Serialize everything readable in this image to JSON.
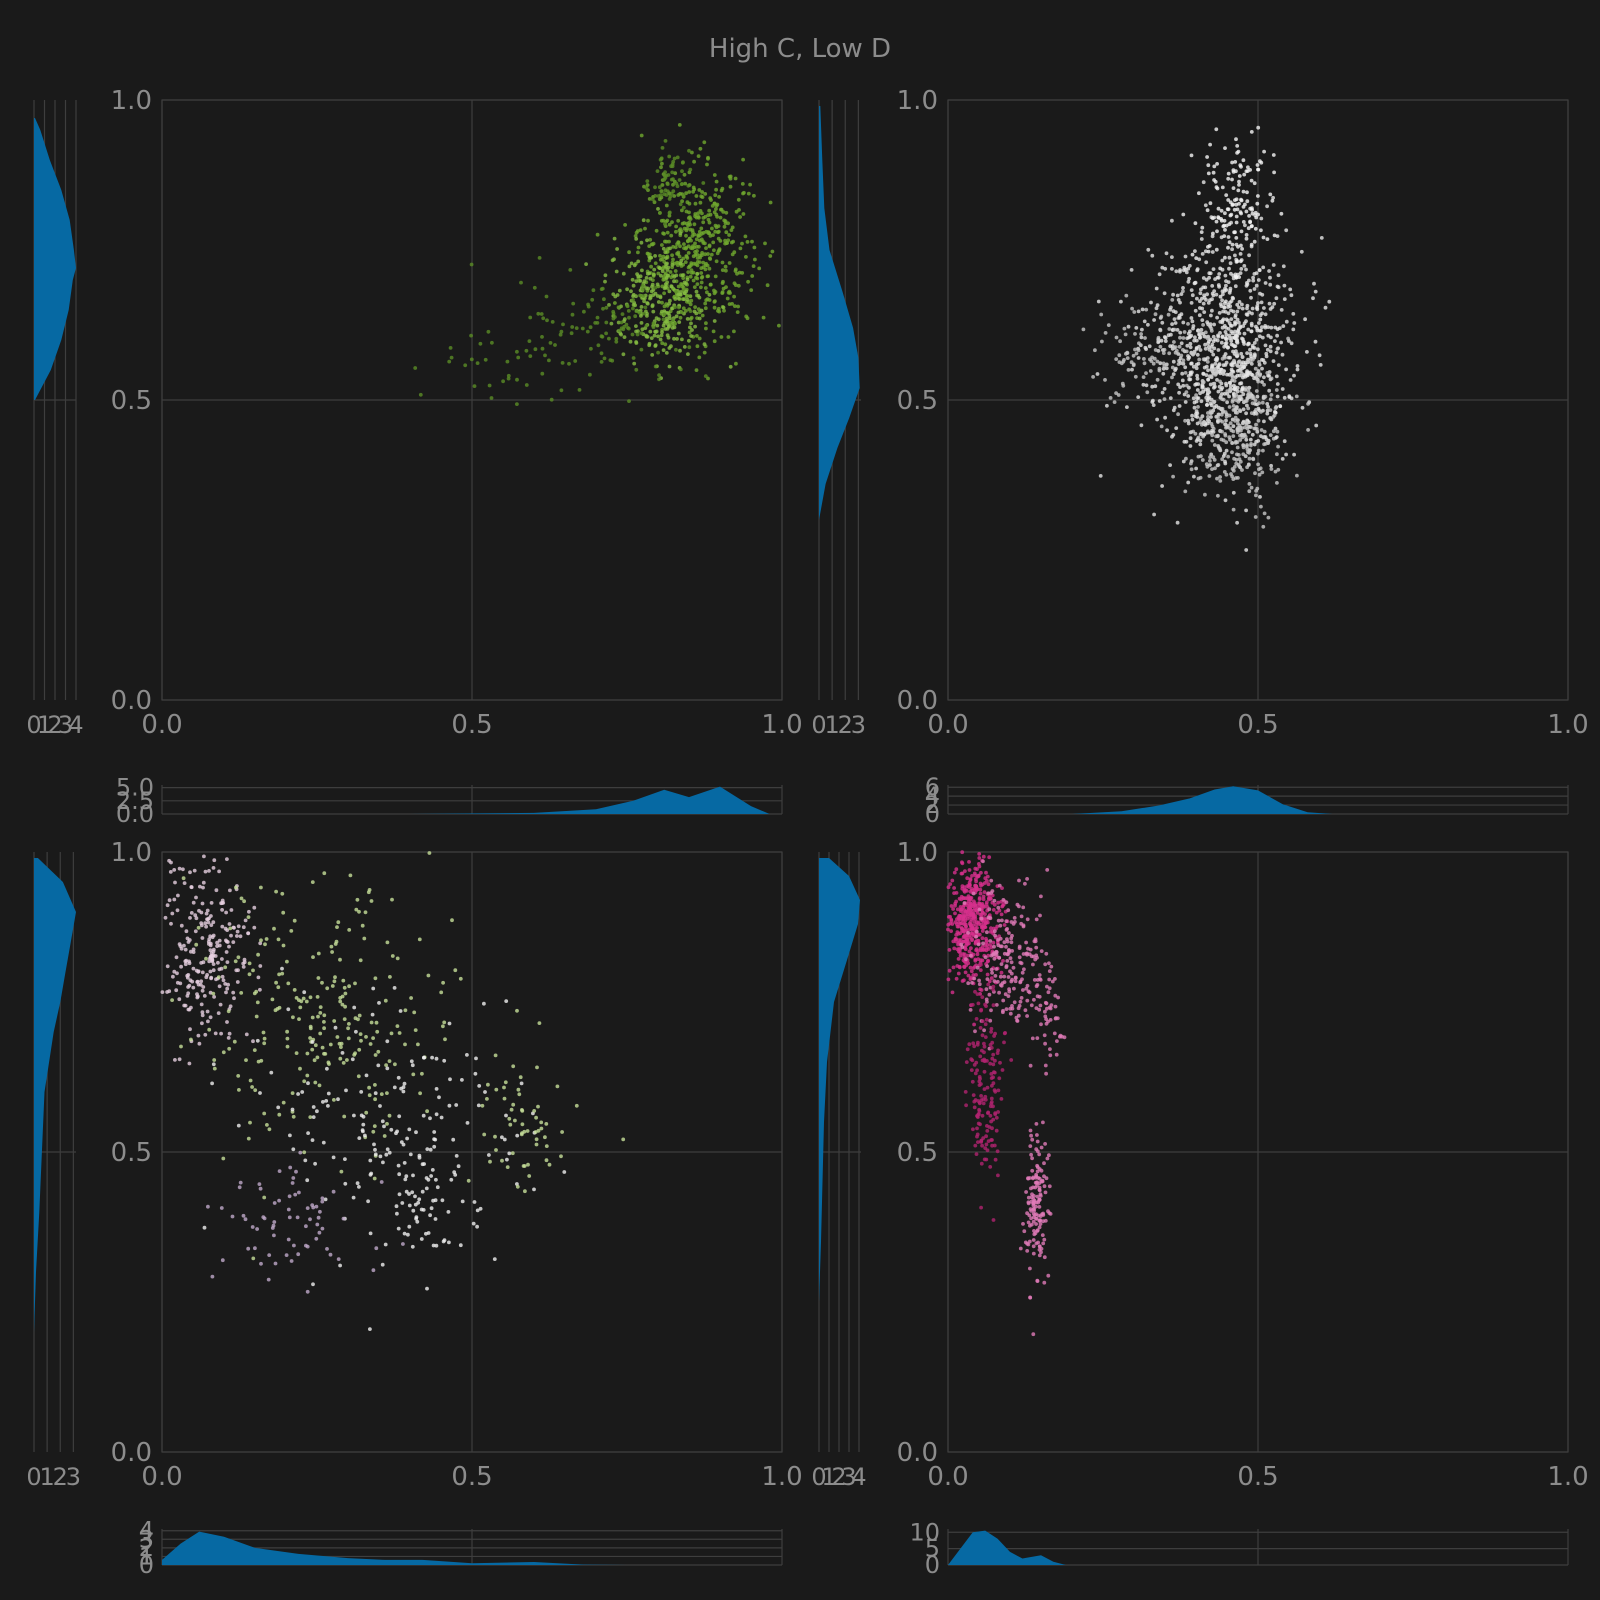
{
  "figure": {
    "title": "High C, Low D",
    "background": "#1a1a1a",
    "density_color": "#0669a3",
    "grid_color": "#3e3e3e",
    "text_color": "#8c8c8c"
  },
  "chart_data": [
    {
      "type": "scatter",
      "panel": "top-left",
      "xlim": [
        0,
        1
      ],
      "ylim": [
        0,
        1
      ],
      "x_ticks": [
        "0.0",
        "0.5",
        "1.0"
      ],
      "y_ticks": [
        "0.0",
        "0.5",
        "1.0"
      ],
      "point_colors": [
        "#6fa82e",
        "#86bd42",
        "#5a8c25"
      ],
      "clusters": [
        {
          "cx": 0.86,
          "cy": 0.75,
          "sx": 0.045,
          "sy": 0.07,
          "n": 520,
          "color": 0
        },
        {
          "cx": 0.8,
          "cy": 0.66,
          "sx": 0.04,
          "sy": 0.05,
          "n": 260,
          "color": 1
        },
        {
          "cx": 0.72,
          "cy": 0.62,
          "sx": 0.07,
          "sy": 0.04,
          "n": 120,
          "color": 2
        },
        {
          "cx": 0.82,
          "cy": 0.86,
          "sx": 0.02,
          "sy": 0.03,
          "n": 60,
          "color": 2
        },
        {
          "cx": 0.55,
          "cy": 0.55,
          "sx": 0.06,
          "sy": 0.03,
          "n": 30,
          "color": 2
        }
      ],
      "y_marginal": {
        "ticks": [
          "0",
          "1",
          "2",
          "3",
          "4"
        ],
        "xmax": 4,
        "density": [
          [
            0.5,
            0.1
          ],
          [
            0.55,
            1.6
          ],
          [
            0.6,
            2.6
          ],
          [
            0.65,
            3.3
          ],
          [
            0.7,
            3.7
          ],
          [
            0.72,
            4.0
          ],
          [
            0.75,
            3.8
          ],
          [
            0.8,
            3.4
          ],
          [
            0.85,
            2.6
          ],
          [
            0.9,
            1.5
          ],
          [
            0.95,
            0.6
          ],
          [
            0.97,
            0.1
          ]
        ]
      },
      "x_marginal": {
        "ticks": [
          "0.0",
          "2.5",
          "5.0"
        ],
        "ymax": 5.5,
        "density": [
          [
            0.4,
            0
          ],
          [
            0.6,
            0.2
          ],
          [
            0.7,
            0.9
          ],
          [
            0.76,
            2.5
          ],
          [
            0.81,
            4.6
          ],
          [
            0.85,
            3.2
          ],
          [
            0.9,
            5.2
          ],
          [
            0.95,
            1.5
          ],
          [
            0.98,
            0
          ]
        ]
      }
    },
    {
      "type": "scatter",
      "panel": "top-right",
      "xlim": [
        0,
        1
      ],
      "ylim": [
        0,
        1
      ],
      "x_ticks": [
        "0.0",
        "0.5",
        "1.0"
      ],
      "y_ticks": [
        "0.0",
        "0.5",
        "1.0"
      ],
      "point_colors": [
        "#e6e6e6",
        "#c8c8c8",
        "#f5f5f5"
      ],
      "clusters": [
        {
          "cx": 0.44,
          "cy": 0.58,
          "sx": 0.06,
          "sy": 0.09,
          "n": 900,
          "color": 0
        },
        {
          "cx": 0.47,
          "cy": 0.45,
          "sx": 0.04,
          "sy": 0.06,
          "n": 300,
          "color": 1
        },
        {
          "cx": 0.46,
          "cy": 0.82,
          "sx": 0.03,
          "sy": 0.06,
          "n": 160,
          "color": 2
        },
        {
          "cx": 0.33,
          "cy": 0.58,
          "sx": 0.05,
          "sy": 0.04,
          "n": 120,
          "color": 1
        }
      ],
      "y_marginal": {
        "ticks": [
          "0",
          "1",
          "2",
          "3"
        ],
        "xmax": 3.2,
        "density": [
          [
            0.3,
            0
          ],
          [
            0.36,
            0.5
          ],
          [
            0.42,
            1.4
          ],
          [
            0.47,
            2.3
          ],
          [
            0.52,
            3.1
          ],
          [
            0.57,
            3.0
          ],
          [
            0.62,
            2.6
          ],
          [
            0.68,
            1.8
          ],
          [
            0.75,
            0.8
          ],
          [
            0.82,
            0.4
          ],
          [
            0.9,
            0.25
          ],
          [
            0.99,
            0.1
          ]
        ]
      },
      "x_marginal": {
        "ticks": [
          "0",
          "2",
          "4",
          "6"
        ],
        "ymax": 6.5,
        "density": [
          [
            0.2,
            0
          ],
          [
            0.28,
            0.6
          ],
          [
            0.34,
            1.9
          ],
          [
            0.39,
            3.5
          ],
          [
            0.43,
            5.5
          ],
          [
            0.46,
            6.2
          ],
          [
            0.5,
            5.3
          ],
          [
            0.54,
            2.2
          ],
          [
            0.58,
            0.4
          ],
          [
            0.62,
            0
          ]
        ]
      }
    },
    {
      "type": "scatter",
      "panel": "bottom-left",
      "xlim": [
        0,
        1
      ],
      "ylim": [
        0,
        1
      ],
      "x_ticks": [
        "0.0",
        "0.5",
        "1.0"
      ],
      "y_ticks": [
        "0.0",
        "0.5",
        "1.0"
      ],
      "point_colors": [
        "#e6cfe0",
        "#c7e09a",
        "#f0f0f0",
        "#bfa9c9"
      ],
      "clusters": [
        {
          "cx": 0.07,
          "cy": 0.83,
          "sx": 0.04,
          "sy": 0.08,
          "n": 260,
          "color": 0
        },
        {
          "cx": 0.25,
          "cy": 0.72,
          "sx": 0.1,
          "sy": 0.12,
          "n": 250,
          "color": 1
        },
        {
          "cx": 0.35,
          "cy": 0.55,
          "sx": 0.12,
          "sy": 0.1,
          "n": 170,
          "color": 2
        },
        {
          "cx": 0.22,
          "cy": 0.38,
          "sx": 0.06,
          "sy": 0.05,
          "n": 70,
          "color": 3
        },
        {
          "cx": 0.58,
          "cy": 0.55,
          "sx": 0.04,
          "sy": 0.07,
          "n": 60,
          "color": 1
        },
        {
          "cx": 0.42,
          "cy": 0.4,
          "sx": 0.03,
          "sy": 0.06,
          "n": 50,
          "color": 2
        }
      ],
      "y_marginal": {
        "ticks": [
          "0",
          "1",
          "2",
          "3"
        ],
        "xmax": 3.2,
        "density": [
          [
            0.2,
            0
          ],
          [
            0.3,
            0.15
          ],
          [
            0.4,
            0.4
          ],
          [
            0.5,
            0.6
          ],
          [
            0.6,
            0.8
          ],
          [
            0.7,
            1.5
          ],
          [
            0.75,
            2.0
          ],
          [
            0.8,
            2.4
          ],
          [
            0.85,
            2.8
          ],
          [
            0.9,
            3.2
          ],
          [
            0.95,
            2.2
          ],
          [
            0.99,
            0.3
          ]
        ]
      },
      "x_marginal": {
        "ticks": [
          "0",
          "1",
          "2",
          "3",
          "4"
        ],
        "ymax": 4.2,
        "density": [
          [
            0,
            0.6
          ],
          [
            0.03,
            2.5
          ],
          [
            0.06,
            3.9
          ],
          [
            0.1,
            3.3
          ],
          [
            0.15,
            2.0
          ],
          [
            0.22,
            1.3
          ],
          [
            0.3,
            0.8
          ],
          [
            0.36,
            0.6
          ],
          [
            0.42,
            0.6
          ],
          [
            0.5,
            0.2
          ],
          [
            0.6,
            0.35
          ],
          [
            0.68,
            0.05
          ],
          [
            0.75,
            0
          ]
        ]
      }
    },
    {
      "type": "scatter",
      "panel": "bottom-right",
      "xlim": [
        0,
        1
      ],
      "ylim": [
        0,
        1
      ],
      "x_ticks": [
        "0.0",
        "0.5",
        "1.0"
      ],
      "y_ticks": [
        "0.0",
        "0.5",
        "1.0"
      ],
      "point_colors": [
        "#d62f8c",
        "#e07ab8",
        "#b0236f"
      ],
      "clusters": [
        {
          "cx": 0.04,
          "cy": 0.88,
          "sx": 0.02,
          "sy": 0.05,
          "n": 480,
          "color": 0
        },
        {
          "cx": 0.09,
          "cy": 0.82,
          "sx": 0.03,
          "sy": 0.07,
          "n": 200,
          "color": 1
        },
        {
          "cx": 0.06,
          "cy": 0.6,
          "sx": 0.015,
          "sy": 0.08,
          "n": 160,
          "color": 2
        },
        {
          "cx": 0.14,
          "cy": 0.42,
          "sx": 0.01,
          "sy": 0.06,
          "n": 150,
          "color": 1
        },
        {
          "cx": 0.16,
          "cy": 0.74,
          "sx": 0.015,
          "sy": 0.05,
          "n": 60,
          "color": 1
        }
      ],
      "y_marginal": {
        "ticks": [
          "0",
          "1",
          "2",
          "3",
          "4"
        ],
        "xmax": 4.2,
        "density": [
          [
            0.25,
            0
          ],
          [
            0.35,
            0.2
          ],
          [
            0.45,
            0.35
          ],
          [
            0.55,
            0.5
          ],
          [
            0.65,
            0.8
          ],
          [
            0.75,
            1.5
          ],
          [
            0.82,
            2.8
          ],
          [
            0.88,
            3.9
          ],
          [
            0.92,
            4.1
          ],
          [
            0.96,
            3.0
          ],
          [
            0.99,
            1.0
          ]
        ]
      },
      "x_marginal": {
        "ticks": [
          "0",
          "5",
          "10"
        ],
        "ymax": 11,
        "density": [
          [
            0,
            0
          ],
          [
            0.02,
            5
          ],
          [
            0.04,
            10
          ],
          [
            0.06,
            10.5
          ],
          [
            0.08,
            8
          ],
          [
            0.1,
            4
          ],
          [
            0.12,
            2
          ],
          [
            0.15,
            3
          ],
          [
            0.17,
            1
          ],
          [
            0.19,
            0
          ]
        ]
      }
    }
  ]
}
